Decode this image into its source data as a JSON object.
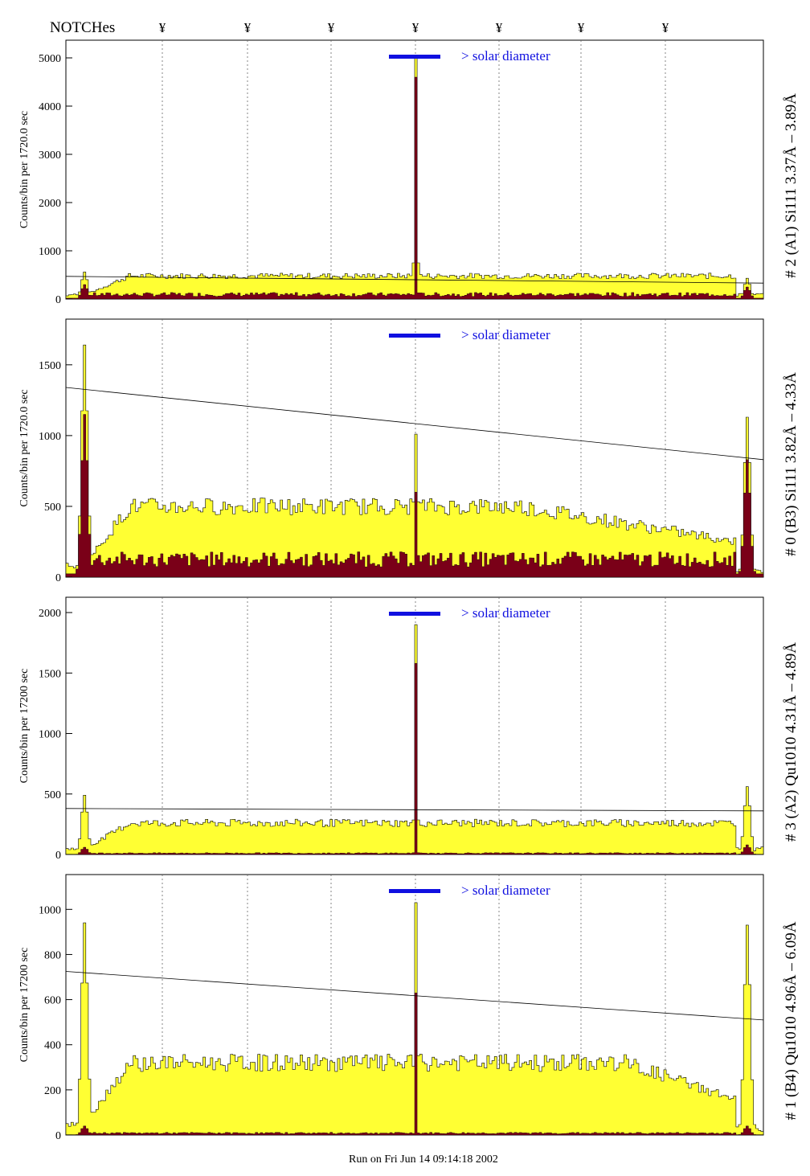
{
  "header": {
    "notches_label": "NOTCHes",
    "notch_symbol": "¥"
  },
  "footer": {
    "run_label": "Run on Fri Jun 14 09:14:18 2002"
  },
  "colors": {
    "outer_fill": "#ffff33",
    "inner_fill": "#7a0018",
    "solar_bar": "#1010e0",
    "line": "#000000"
  },
  "chart_data": [
    {
      "type": "bar",
      "id": "p1",
      "title": "# 2 (A1) Si111  3.37Å – 3.89Å",
      "ylabel": "Counts/bin per   1720.0 sec",
      "ylim": [
        0,
        5300
      ],
      "yticks": [
        0,
        1000,
        2000,
        3000,
        4000,
        5000
      ],
      "solar_label": "> solar diameter",
      "outer_level": 480,
      "inner_level": 90,
      "peak_outer": 5000,
      "peak_inner": 4600,
      "left_spike_outer": 560,
      "left_spike_inner": 300,
      "right_spike_outer": 430,
      "right_spike_inner": 250,
      "trend": [
        470,
        330
      ],
      "profile": "flat"
    },
    {
      "type": "bar",
      "id": "p2",
      "title": "# 0 (B3) Si111  3.82Å – 4.33Å",
      "ylabel": "Counts/bin per   1720.0 sec",
      "ylim": [
        0,
        1800
      ],
      "yticks": [
        0,
        500,
        1000,
        1500
      ],
      "solar_label": "> solar diameter",
      "outer_level": 500,
      "inner_level": 120,
      "peak_outer": 1010,
      "peak_inner": 600,
      "left_spike_outer": 1640,
      "left_spike_inner": 1150,
      "right_spike_outer": 1130,
      "right_spike_inner": 830,
      "trend": [
        1340,
        830
      ],
      "profile": "decline"
    },
    {
      "type": "bar",
      "id": "p3",
      "title": "# 3 (A2) Qu1010  4.31Å – 4.89Å",
      "ylabel": "Counts/bin per   17200 sec",
      "ylim": [
        0,
        2100
      ],
      "yticks": [
        0,
        500,
        1000,
        1500,
        2000
      ],
      "solar_label": "> solar diameter",
      "outer_level": 260,
      "inner_level": 10,
      "peak_outer": 1900,
      "peak_inner": 1580,
      "left_spike_outer": 490,
      "left_spike_inner": 60,
      "right_spike_outer": 560,
      "right_spike_inner": 80,
      "trend": [
        380,
        360
      ],
      "profile": "flat"
    },
    {
      "type": "bar",
      "id": "p4",
      "title": "# 1 (B4) Qu1010 4.96Å – 6.09Å",
      "ylabel": "Counts/bin per   17200 sec",
      "ylim": [
        0,
        1140
      ],
      "yticks": [
        0,
        200,
        400,
        600,
        800,
        1000
      ],
      "solar_label": "> solar diameter",
      "outer_level": 320,
      "inner_level": 8,
      "peak_outer": 1030,
      "peak_inner": 630,
      "left_spike_outer": 940,
      "left_spike_inner": 40,
      "right_spike_outer": 930,
      "right_spike_inner": 40,
      "trend": [
        725,
        510
      ],
      "profile": "decline4"
    }
  ]
}
